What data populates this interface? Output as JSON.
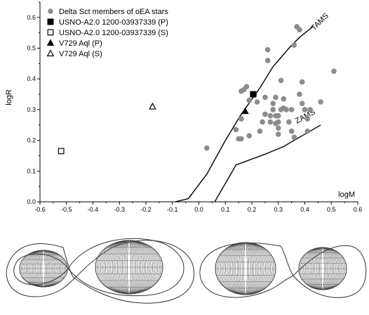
{
  "chart_data": {
    "type": "scatter",
    "xlabel": "logM",
    "ylabel": "logR",
    "xlim": [
      -0.6,
      0.6
    ],
    "ylim": [
      0.0,
      0.65
    ],
    "x_ticks": [
      "-0.6",
      "-0.5",
      "-0.4",
      "-0.3",
      "-0.2",
      "-0.1",
      "0.0",
      "0.1",
      "0.2",
      "0.3",
      "0.4",
      "0.5",
      "0.6"
    ],
    "y_ticks": [
      "0.0",
      "0.1",
      "0.2",
      "0.3",
      "0.4",
      "0.5",
      "0.6"
    ],
    "grid": false,
    "legend_position": "top-left",
    "series": [
      {
        "name": "Delta Sct members of oEA stars",
        "marker": "filled-circle",
        "color": "#8c8c8c",
        "points": [
          [
            0.03,
            0.175
          ],
          [
            0.15,
            0.205
          ],
          [
            0.16,
            0.205
          ],
          [
            0.14,
            0.235
          ],
          [
            0.16,
            0.27
          ],
          [
            0.17,
            0.365
          ],
          [
            0.16,
            0.36
          ],
          [
            0.18,
            0.375
          ],
          [
            0.19,
            0.33
          ],
          [
            0.21,
            0.35
          ],
          [
            0.22,
            0.325
          ],
          [
            0.19,
            0.215
          ],
          [
            0.23,
            0.23
          ],
          [
            0.24,
            0.26
          ],
          [
            0.25,
            0.34
          ],
          [
            0.25,
            0.285
          ],
          [
            0.27,
            0.28
          ],
          [
            0.28,
            0.32
          ],
          [
            0.26,
            0.46
          ],
          [
            0.26,
            0.495
          ],
          [
            0.28,
            0.3
          ],
          [
            0.29,
            0.34
          ],
          [
            0.29,
            0.28
          ],
          [
            0.29,
            0.255
          ],
          [
            0.3,
            0.22
          ],
          [
            0.3,
            0.24
          ],
          [
            0.3,
            0.26
          ],
          [
            0.31,
            0.3
          ],
          [
            0.32,
            0.335
          ],
          [
            0.31,
            0.395
          ],
          [
            0.32,
            0.305
          ],
          [
            0.33,
            0.3
          ],
          [
            0.34,
            0.26
          ],
          [
            0.35,
            0.23
          ],
          [
            0.35,
            0.3
          ],
          [
            0.36,
            0.21
          ],
          [
            0.36,
            0.51
          ],
          [
            0.37,
            0.57
          ],
          [
            0.38,
            0.56
          ],
          [
            0.38,
            0.35
          ],
          [
            0.39,
            0.39
          ],
          [
            0.39,
            0.32
          ],
          [
            0.4,
            0.3
          ],
          [
            0.41,
            0.27
          ],
          [
            0.41,
            0.23
          ],
          [
            0.42,
            0.3
          ],
          [
            0.46,
            0.325
          ],
          [
            0.51,
            0.425
          ],
          [
            0.3,
            0.28
          ],
          [
            0.27,
            0.26
          ],
          [
            0.4,
            0.3
          ]
        ]
      },
      {
        "name": "USNO-A2.0 1200-03937339 (P)",
        "marker": "filled-square",
        "color": "#000000",
        "points": [
          [
            0.205,
            0.35
          ]
        ]
      },
      {
        "name": "USNO-A2.0 1200-03937339 (S)",
        "marker": "open-square",
        "color": "#000000",
        "points": [
          [
            -0.52,
            0.165
          ]
        ]
      },
      {
        "name": "V729 Aql (P)",
        "marker": "filled-triangle",
        "color": "#000000",
        "points": [
          [
            0.175,
            0.295
          ]
        ]
      },
      {
        "name": "V729 Aql (S)",
        "marker": "open-triangle",
        "color": "#000000",
        "points": [
          [
            -0.175,
            0.31
          ]
        ]
      }
    ],
    "lines": [
      {
        "name": "TAMS",
        "points": [
          [
            -0.09,
            0.0
          ],
          [
            -0.04,
            0.01
          ],
          [
            0.03,
            0.09
          ],
          [
            0.1,
            0.2
          ],
          [
            0.16,
            0.285
          ],
          [
            0.23,
            0.37
          ],
          [
            0.28,
            0.44
          ],
          [
            0.34,
            0.5
          ],
          [
            0.38,
            0.535
          ],
          [
            0.43,
            0.57
          ]
        ]
      },
      {
        "name": "ZAMS",
        "points": [
          [
            0.06,
            0.0
          ],
          [
            0.1,
            0.06
          ],
          [
            0.14,
            0.12
          ],
          [
            0.25,
            0.155
          ],
          [
            0.32,
            0.18
          ],
          [
            0.38,
            0.21
          ],
          [
            0.46,
            0.25
          ]
        ]
      }
    ],
    "line_labels": [
      "TAMS",
      "ZAMS"
    ]
  }
}
